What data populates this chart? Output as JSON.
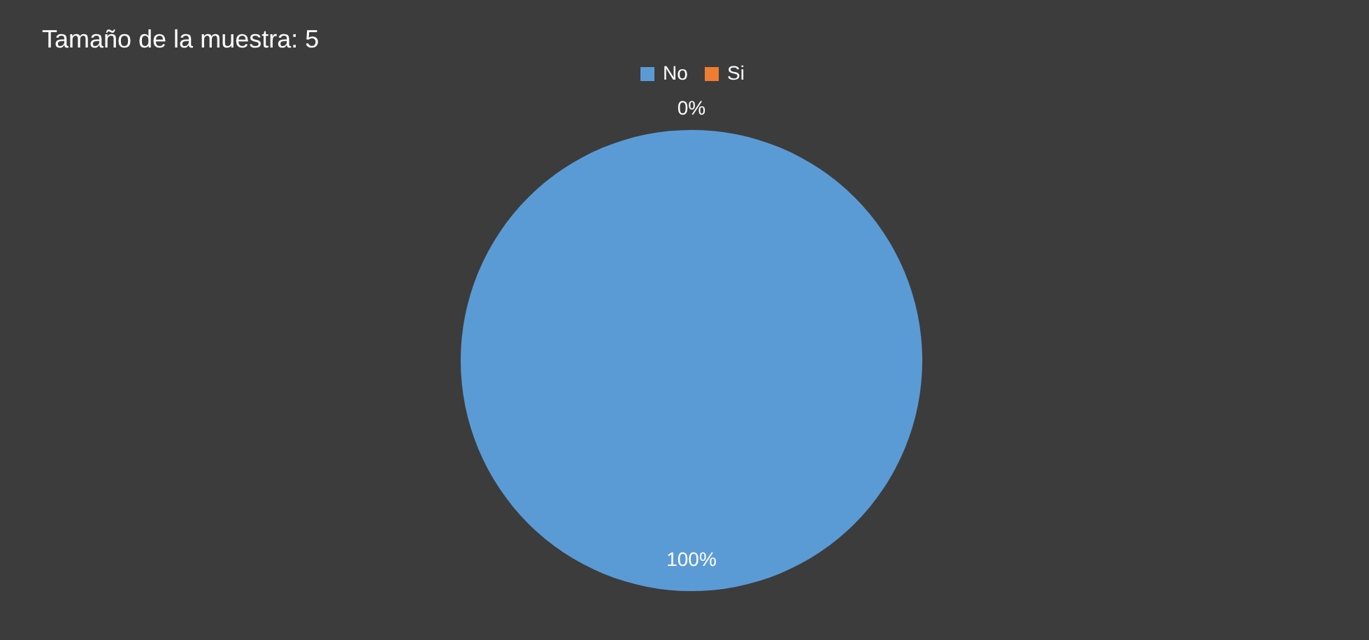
{
  "chart_data": {
    "type": "pie",
    "title": "Tamaño de la muestra: 5",
    "categories": [
      "No",
      "Si"
    ],
    "values": [
      100,
      0
    ],
    "colors": [
      "#5b9bd5",
      "#ed7d31"
    ],
    "value_labels": [
      "100%",
      "0%"
    ],
    "legend": "top"
  }
}
